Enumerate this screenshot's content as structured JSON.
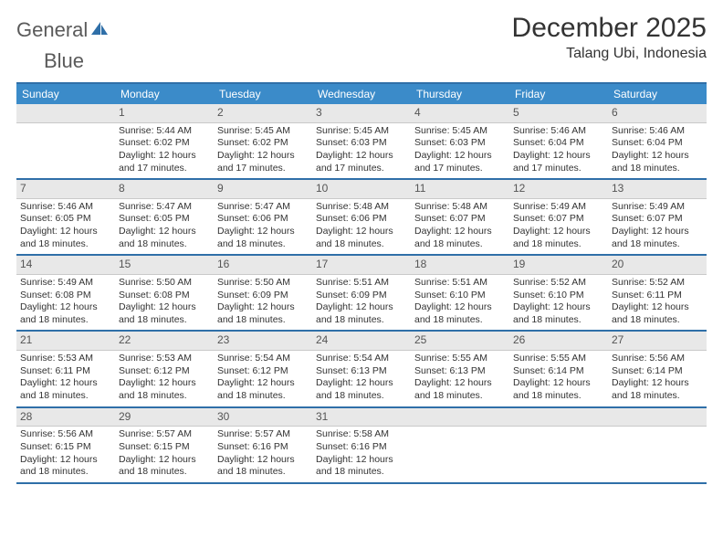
{
  "brand": {
    "word1": "General",
    "word2": "Blue"
  },
  "header": {
    "title": "December 2025",
    "location": "Talang Ubi, Indonesia"
  },
  "colors": {
    "accent": "#3b8bc9",
    "rule": "#2f6fa8",
    "daybg": "#e8e8e8",
    "text": "#333333"
  },
  "calendar": {
    "type": "table",
    "columns": [
      "Sunday",
      "Monday",
      "Tuesday",
      "Wednesday",
      "Thursday",
      "Friday",
      "Saturday"
    ],
    "weeks": [
      {
        "nums": [
          "",
          "1",
          "2",
          "3",
          "4",
          "5",
          "6"
        ],
        "cells": [
          [],
          [
            "Sunrise: 5:44 AM",
            "Sunset: 6:02 PM",
            "Daylight: 12 hours",
            "and 17 minutes."
          ],
          [
            "Sunrise: 5:45 AM",
            "Sunset: 6:02 PM",
            "Daylight: 12 hours",
            "and 17 minutes."
          ],
          [
            "Sunrise: 5:45 AM",
            "Sunset: 6:03 PM",
            "Daylight: 12 hours",
            "and 17 minutes."
          ],
          [
            "Sunrise: 5:45 AM",
            "Sunset: 6:03 PM",
            "Daylight: 12 hours",
            "and 17 minutes."
          ],
          [
            "Sunrise: 5:46 AM",
            "Sunset: 6:04 PM",
            "Daylight: 12 hours",
            "and 17 minutes."
          ],
          [
            "Sunrise: 5:46 AM",
            "Sunset: 6:04 PM",
            "Daylight: 12 hours",
            "and 18 minutes."
          ]
        ]
      },
      {
        "nums": [
          "7",
          "8",
          "9",
          "10",
          "11",
          "12",
          "13"
        ],
        "cells": [
          [
            "Sunrise: 5:46 AM",
            "Sunset: 6:05 PM",
            "Daylight: 12 hours",
            "and 18 minutes."
          ],
          [
            "Sunrise: 5:47 AM",
            "Sunset: 6:05 PM",
            "Daylight: 12 hours",
            "and 18 minutes."
          ],
          [
            "Sunrise: 5:47 AM",
            "Sunset: 6:06 PM",
            "Daylight: 12 hours",
            "and 18 minutes."
          ],
          [
            "Sunrise: 5:48 AM",
            "Sunset: 6:06 PM",
            "Daylight: 12 hours",
            "and 18 minutes."
          ],
          [
            "Sunrise: 5:48 AM",
            "Sunset: 6:07 PM",
            "Daylight: 12 hours",
            "and 18 minutes."
          ],
          [
            "Sunrise: 5:49 AM",
            "Sunset: 6:07 PM",
            "Daylight: 12 hours",
            "and 18 minutes."
          ],
          [
            "Sunrise: 5:49 AM",
            "Sunset: 6:07 PM",
            "Daylight: 12 hours",
            "and 18 minutes."
          ]
        ]
      },
      {
        "nums": [
          "14",
          "15",
          "16",
          "17",
          "18",
          "19",
          "20"
        ],
        "cells": [
          [
            "Sunrise: 5:49 AM",
            "Sunset: 6:08 PM",
            "Daylight: 12 hours",
            "and 18 minutes."
          ],
          [
            "Sunrise: 5:50 AM",
            "Sunset: 6:08 PM",
            "Daylight: 12 hours",
            "and 18 minutes."
          ],
          [
            "Sunrise: 5:50 AM",
            "Sunset: 6:09 PM",
            "Daylight: 12 hours",
            "and 18 minutes."
          ],
          [
            "Sunrise: 5:51 AM",
            "Sunset: 6:09 PM",
            "Daylight: 12 hours",
            "and 18 minutes."
          ],
          [
            "Sunrise: 5:51 AM",
            "Sunset: 6:10 PM",
            "Daylight: 12 hours",
            "and 18 minutes."
          ],
          [
            "Sunrise: 5:52 AM",
            "Sunset: 6:10 PM",
            "Daylight: 12 hours",
            "and 18 minutes."
          ],
          [
            "Sunrise: 5:52 AM",
            "Sunset: 6:11 PM",
            "Daylight: 12 hours",
            "and 18 minutes."
          ]
        ]
      },
      {
        "nums": [
          "21",
          "22",
          "23",
          "24",
          "25",
          "26",
          "27"
        ],
        "cells": [
          [
            "Sunrise: 5:53 AM",
            "Sunset: 6:11 PM",
            "Daylight: 12 hours",
            "and 18 minutes."
          ],
          [
            "Sunrise: 5:53 AM",
            "Sunset: 6:12 PM",
            "Daylight: 12 hours",
            "and 18 minutes."
          ],
          [
            "Sunrise: 5:54 AM",
            "Sunset: 6:12 PM",
            "Daylight: 12 hours",
            "and 18 minutes."
          ],
          [
            "Sunrise: 5:54 AM",
            "Sunset: 6:13 PM",
            "Daylight: 12 hours",
            "and 18 minutes."
          ],
          [
            "Sunrise: 5:55 AM",
            "Sunset: 6:13 PM",
            "Daylight: 12 hours",
            "and 18 minutes."
          ],
          [
            "Sunrise: 5:55 AM",
            "Sunset: 6:14 PM",
            "Daylight: 12 hours",
            "and 18 minutes."
          ],
          [
            "Sunrise: 5:56 AM",
            "Sunset: 6:14 PM",
            "Daylight: 12 hours",
            "and 18 minutes."
          ]
        ]
      },
      {
        "nums": [
          "28",
          "29",
          "30",
          "31",
          "",
          "",
          ""
        ],
        "cells": [
          [
            "Sunrise: 5:56 AM",
            "Sunset: 6:15 PM",
            "Daylight: 12 hours",
            "and 18 minutes."
          ],
          [
            "Sunrise: 5:57 AM",
            "Sunset: 6:15 PM",
            "Daylight: 12 hours",
            "and 18 minutes."
          ],
          [
            "Sunrise: 5:57 AM",
            "Sunset: 6:16 PM",
            "Daylight: 12 hours",
            "and 18 minutes."
          ],
          [
            "Sunrise: 5:58 AM",
            "Sunset: 6:16 PM",
            "Daylight: 12 hours",
            "and 18 minutes."
          ],
          [],
          [],
          []
        ]
      }
    ]
  }
}
